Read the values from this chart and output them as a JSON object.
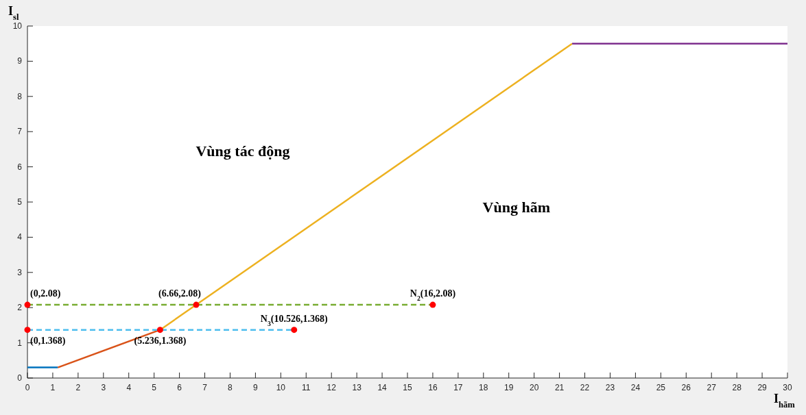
{
  "chart_data": {
    "type": "line",
    "xlabel": "I$_{hãm}$",
    "ylabel": "I$_{sl}$",
    "xlim": [
      0,
      30
    ],
    "xticks": [
      0,
      1,
      2,
      3,
      4,
      5,
      6,
      7,
      8,
      9,
      10,
      11,
      12,
      13,
      14,
      15,
      16,
      17,
      18,
      19,
      20,
      21,
      22,
      23,
      24,
      25,
      26,
      27,
      28,
      29,
      30
    ],
    "ylim": [
      0,
      10
    ],
    "yticks": [
      0,
      1,
      2,
      3,
      4,
      5,
      6,
      7,
      8,
      9,
      10
    ],
    "grid": false,
    "series": [
      {
        "color": "#0072bd",
        "x": [
          0,
          1.2
        ],
        "values": [
          0.3,
          0.3
        ],
        "line_style": "solid",
        "marker": "none"
      },
      {
        "color": "#d95319",
        "x": [
          1.2,
          5.236
        ],
        "values": [
          0.3,
          1.368
        ],
        "line_style": "solid",
        "marker": "none"
      },
      {
        "color": "#edb120",
        "x": [
          5.236,
          21.5
        ],
        "values": [
          1.368,
          9.5
        ],
        "line_style": "solid",
        "marker": "none"
      },
      {
        "color": "#7e2f8e",
        "x": [
          21.5,
          30
        ],
        "values": [
          9.5,
          9.5
        ],
        "line_style": "solid",
        "marker": "none"
      },
      {
        "color": "#77ac30",
        "x": [
          0,
          16
        ],
        "values": [
          2.08,
          2.08
        ],
        "line_style": "dashed",
        "marker": "none"
      },
      {
        "color": "#4dbeee",
        "x": [
          0,
          10.526
        ],
        "values": [
          1.368,
          1.368
        ],
        "line_style": "dashed",
        "marker": "none"
      },
      {
        "type": "scatter",
        "color": "#ff0000",
        "x": [
          0,
          6.66,
          16,
          0,
          5.236,
          10.526
        ],
        "values": [
          2.08,
          2.08,
          2.08,
          1.368,
          1.368,
          1.368
        ],
        "marker": "circle"
      }
    ],
    "annotations": [
      {
        "text": "(0,2.08)",
        "x": 0,
        "y": 2.08
      },
      {
        "text": "(6.66,2.08)",
        "x": 6.66,
        "y": 2.08
      },
      {
        "text": "N$_{2}$(16,2.08)",
        "x": 16,
        "y": 2.08
      },
      {
        "text": "(0,1.368)",
        "x": 0,
        "y": 1.368
      },
      {
        "text": "(5.236,1.368)",
        "x": 5.236,
        "y": 1.368
      },
      {
        "text": "N$_{3}$(10.526,1.368)",
        "x": 10.526,
        "y": 1.368
      },
      "Vùng tác động",
      "Vùng hãm"
    ]
  }
}
